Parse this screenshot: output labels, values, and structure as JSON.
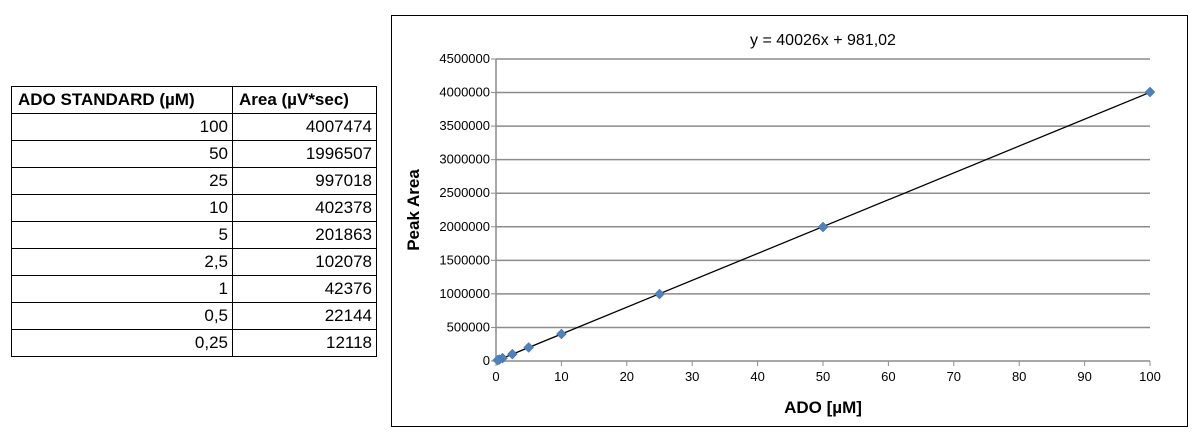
{
  "table": {
    "headers": [
      "ADO STANDARD (µM)",
      "Area (µV*sec)"
    ],
    "rows": [
      [
        "100",
        "4007474"
      ],
      [
        "50",
        "1996507"
      ],
      [
        "25",
        "997018"
      ],
      [
        "10",
        "402378"
      ],
      [
        "5",
        "201863"
      ],
      [
        "2,5",
        "102078"
      ],
      [
        "1",
        "42376"
      ],
      [
        "0,5",
        "22144"
      ],
      [
        "0,25",
        "12118"
      ]
    ]
  },
  "chart_data": {
    "type": "scatter",
    "annotation": "y = 40026x + 981,02",
    "xlabel": "ADO [µM]",
    "ylabel": "Peak Area",
    "xlim": [
      0,
      100
    ],
    "ylim": [
      0,
      4500000
    ],
    "x_ticks": [
      "0",
      "10",
      "20",
      "30",
      "40",
      "50",
      "60",
      "70",
      "80",
      "90",
      "100"
    ],
    "y_ticks": [
      "0",
      "500000",
      "1000000",
      "1500000",
      "2000000",
      "2500000",
      "3000000",
      "3500000",
      "4000000",
      "4500000"
    ],
    "grid": "horizontal",
    "series": [
      {
        "x": [
          100,
          50,
          25,
          10,
          5,
          2.5,
          1,
          0.5,
          0.25
        ],
        "y": [
          4007474,
          1996507,
          997018,
          402378,
          201863,
          102078,
          42376,
          22144,
          12118
        ],
        "color": "#4f81bd",
        "marker": "diamond"
      }
    ],
    "trendline": {
      "slope": 40026,
      "intercept": 981.02,
      "color": "#000000"
    }
  }
}
